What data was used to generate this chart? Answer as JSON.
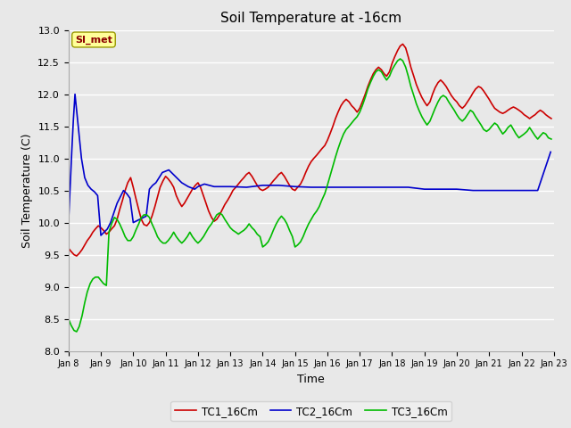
{
  "title": "Soil Temperature at -16cm",
  "xlabel": "Time",
  "ylabel": "Soil Temperature (C)",
  "ylim": [
    8.0,
    13.0
  ],
  "yticks": [
    8.0,
    8.5,
    9.0,
    9.5,
    10.0,
    10.5,
    11.0,
    11.5,
    12.0,
    12.5,
    13.0
  ],
  "annotation_text": "SI_met",
  "annotation_color": "#8B0000",
  "annotation_bg": "#FFFF99",
  "bg_color": "#E8E8E8",
  "plot_bg_color": "#E8E8E8",
  "grid_color": "#FFFFFF",
  "line_colors": {
    "TC1": "#CC0000",
    "TC2": "#0000CC",
    "TC3": "#00BB00"
  },
  "line_width": 1.2,
  "legend_labels": [
    "TC1_16Cm",
    "TC2_16Cm",
    "TC3_16Cm"
  ],
  "x_start_day": 8,
  "x_end_day": 23,
  "x_tick_days": [
    8,
    9,
    10,
    11,
    12,
    13,
    14,
    15,
    16,
    17,
    18,
    19,
    20,
    21,
    22,
    23
  ],
  "TC1_x": [
    8.0,
    8.08,
    8.17,
    8.25,
    8.33,
    8.42,
    8.5,
    8.58,
    8.67,
    8.75,
    8.83,
    8.92,
    9.0,
    9.08,
    9.17,
    9.25,
    9.33,
    9.42,
    9.5,
    9.58,
    9.67,
    9.75,
    9.83,
    9.92,
    10.0,
    10.08,
    10.17,
    10.25,
    10.33,
    10.42,
    10.5,
    10.58,
    10.67,
    10.75,
    10.83,
    10.92,
    11.0,
    11.08,
    11.17,
    11.25,
    11.33,
    11.42,
    11.5,
    11.58,
    11.67,
    11.75,
    11.83,
    11.92,
    12.0,
    12.08,
    12.17,
    12.25,
    12.33,
    12.42,
    12.5,
    12.58,
    12.67,
    12.75,
    12.83,
    12.92,
    13.0,
    13.08,
    13.17,
    13.25,
    13.33,
    13.42,
    13.5,
    13.58,
    13.67,
    13.75,
    13.83,
    13.92,
    14.0,
    14.08,
    14.17,
    14.25,
    14.33,
    14.42,
    14.5,
    14.58,
    14.67,
    14.75,
    14.83,
    14.92,
    15.0,
    15.08,
    15.17,
    15.25,
    15.33,
    15.42,
    15.5,
    15.58,
    15.67,
    15.75,
    15.83,
    15.92,
    16.0,
    16.08,
    16.17,
    16.25,
    16.33,
    16.42,
    16.5,
    16.58,
    16.67,
    16.75,
    16.83,
    16.92,
    17.0,
    17.08,
    17.17,
    17.25,
    17.33,
    17.42,
    17.5,
    17.58,
    17.67,
    17.75,
    17.83,
    17.92,
    18.0,
    18.08,
    18.17,
    18.25,
    18.33,
    18.42,
    18.5,
    18.58,
    18.67,
    18.75,
    18.83,
    18.92,
    19.0,
    19.08,
    19.17,
    19.25,
    19.33,
    19.42,
    19.5,
    19.58,
    19.67,
    19.75,
    19.83,
    19.92,
    20.0,
    20.08,
    20.17,
    20.25,
    20.33,
    20.42,
    20.5,
    20.58,
    20.67,
    20.75,
    20.83,
    20.92,
    21.0,
    21.08,
    21.17,
    21.25,
    21.33,
    21.42,
    21.5,
    21.58,
    21.67,
    21.75,
    21.83,
    21.92,
    22.0,
    22.08,
    22.17,
    22.25,
    22.33,
    22.42,
    22.5,
    22.58,
    22.67,
    22.75,
    22.83,
    22.92
  ],
  "TC1_y": [
    9.6,
    9.55,
    9.5,
    9.48,
    9.52,
    9.58,
    9.65,
    9.72,
    9.78,
    9.85,
    9.9,
    9.95,
    9.92,
    9.88,
    9.82,
    9.85,
    9.9,
    9.95,
    10.05,
    10.2,
    10.35,
    10.5,
    10.62,
    10.7,
    10.55,
    10.38,
    10.2,
    10.05,
    9.97,
    9.95,
    10.0,
    10.1,
    10.25,
    10.4,
    10.55,
    10.65,
    10.72,
    10.68,
    10.62,
    10.55,
    10.42,
    10.32,
    10.25,
    10.3,
    10.38,
    10.45,
    10.52,
    10.58,
    10.62,
    10.55,
    10.42,
    10.3,
    10.18,
    10.08,
    10.02,
    10.05,
    10.12,
    10.2,
    10.28,
    10.35,
    10.42,
    10.5,
    10.55,
    10.6,
    10.65,
    10.7,
    10.75,
    10.78,
    10.72,
    10.65,
    10.58,
    10.52,
    10.5,
    10.52,
    10.55,
    10.6,
    10.65,
    10.7,
    10.75,
    10.78,
    10.72,
    10.65,
    10.58,
    10.52,
    10.5,
    10.55,
    10.6,
    10.68,
    10.78,
    10.88,
    10.95,
    11.0,
    11.05,
    11.1,
    11.15,
    11.2,
    11.28,
    11.38,
    11.5,
    11.62,
    11.72,
    11.82,
    11.88,
    11.92,
    11.88,
    11.82,
    11.78,
    11.72,
    11.78,
    11.88,
    12.0,
    12.12,
    12.22,
    12.32,
    12.38,
    12.42,
    12.38,
    12.32,
    12.28,
    12.35,
    12.48,
    12.58,
    12.68,
    12.75,
    12.78,
    12.72,
    12.58,
    12.42,
    12.28,
    12.15,
    12.05,
    11.95,
    11.88,
    11.82,
    11.88,
    12.0,
    12.1,
    12.18,
    12.22,
    12.18,
    12.12,
    12.05,
    11.98,
    11.92,
    11.88,
    11.82,
    11.78,
    11.82,
    11.88,
    11.95,
    12.02,
    12.08,
    12.12,
    12.1,
    12.05,
    11.98,
    11.92,
    11.85,
    11.78,
    11.75,
    11.72,
    11.7,
    11.72,
    11.75,
    11.78,
    11.8,
    11.78,
    11.75,
    11.72,
    11.68,
    11.65,
    11.62,
    11.65,
    11.68,
    11.72,
    11.75,
    11.72,
    11.68,
    11.65,
    11.62
  ],
  "TC2_x": [
    8.0,
    8.05,
    8.1,
    8.15,
    8.2,
    8.3,
    8.4,
    8.5,
    8.6,
    8.7,
    8.8,
    8.9,
    9.0,
    9.1,
    9.2,
    9.3,
    9.4,
    9.5,
    9.6,
    9.7,
    9.8,
    9.9,
    10.0,
    10.2,
    10.4,
    10.5,
    10.6,
    10.7,
    10.9,
    11.1,
    11.3,
    11.5,
    11.7,
    11.9,
    12.0,
    12.2,
    12.5,
    12.7,
    13.0,
    13.5,
    14.0,
    14.5,
    15.0,
    15.5,
    16.0,
    16.5,
    17.0,
    17.5,
    18.0,
    18.5,
    19.0,
    19.5,
    20.0,
    20.5,
    21.0,
    21.1,
    21.15,
    21.2,
    21.5,
    21.8,
    22.0,
    22.5,
    22.9
  ],
  "TC2_y": [
    10.0,
    10.55,
    11.1,
    11.6,
    12.0,
    11.5,
    11.0,
    10.7,
    10.58,
    10.52,
    10.48,
    10.42,
    9.8,
    9.85,
    9.9,
    10.0,
    10.15,
    10.3,
    10.4,
    10.5,
    10.45,
    10.38,
    10.0,
    10.05,
    10.1,
    10.52,
    10.58,
    10.62,
    10.78,
    10.82,
    10.72,
    10.62,
    10.56,
    10.52,
    10.56,
    10.6,
    10.56,
    10.56,
    10.56,
    10.55,
    10.58,
    10.58,
    10.56,
    10.55,
    10.55,
    10.55,
    10.55,
    10.55,
    10.55,
    10.55,
    10.52,
    10.52,
    10.52,
    10.5,
    10.5,
    10.5,
    10.5,
    10.5,
    10.5,
    10.5,
    10.5,
    10.5,
    11.1
  ],
  "TC3_x": [
    8.0,
    8.08,
    8.17,
    8.25,
    8.33,
    8.42,
    8.5,
    8.58,
    8.67,
    8.75,
    8.83,
    8.92,
    9.0,
    9.08,
    9.17,
    9.25,
    9.33,
    9.42,
    9.5,
    9.58,
    9.67,
    9.75,
    9.83,
    9.92,
    10.0,
    10.08,
    10.17,
    10.25,
    10.33,
    10.42,
    10.5,
    10.58,
    10.67,
    10.75,
    10.83,
    10.92,
    11.0,
    11.08,
    11.17,
    11.25,
    11.33,
    11.42,
    11.5,
    11.58,
    11.67,
    11.75,
    11.83,
    11.92,
    12.0,
    12.08,
    12.17,
    12.25,
    12.33,
    12.42,
    12.5,
    12.58,
    12.67,
    12.75,
    12.83,
    12.92,
    13.0,
    13.08,
    13.17,
    13.25,
    13.33,
    13.42,
    13.5,
    13.58,
    13.67,
    13.75,
    13.83,
    13.92,
    14.0,
    14.08,
    14.17,
    14.25,
    14.33,
    14.42,
    14.5,
    14.58,
    14.67,
    14.75,
    14.83,
    14.92,
    15.0,
    15.08,
    15.17,
    15.25,
    15.33,
    15.42,
    15.5,
    15.58,
    15.67,
    15.75,
    15.83,
    15.92,
    16.0,
    16.08,
    16.17,
    16.25,
    16.33,
    16.42,
    16.5,
    16.58,
    16.67,
    16.75,
    16.83,
    16.92,
    17.0,
    17.08,
    17.17,
    17.25,
    17.33,
    17.42,
    17.5,
    17.58,
    17.67,
    17.75,
    17.83,
    17.92,
    18.0,
    18.08,
    18.17,
    18.25,
    18.33,
    18.42,
    18.5,
    18.58,
    18.67,
    18.75,
    18.83,
    18.92,
    19.0,
    19.08,
    19.17,
    19.25,
    19.33,
    19.42,
    19.5,
    19.58,
    19.67,
    19.75,
    19.83,
    19.92,
    20.0,
    20.08,
    20.17,
    20.25,
    20.33,
    20.42,
    20.5,
    20.58,
    20.67,
    20.75,
    20.83,
    20.92,
    21.0,
    21.08,
    21.17,
    21.25,
    21.33,
    21.42,
    21.5,
    21.58,
    21.67,
    21.75,
    21.83,
    21.92,
    22.0,
    22.08,
    22.17,
    22.25,
    22.33,
    22.42,
    22.5,
    22.58,
    22.67,
    22.75,
    22.83,
    22.92
  ],
  "TC3_y": [
    8.5,
    8.4,
    8.32,
    8.3,
    8.38,
    8.55,
    8.75,
    8.92,
    9.05,
    9.12,
    9.15,
    9.15,
    9.1,
    9.05,
    9.02,
    9.85,
    9.98,
    10.08,
    10.05,
    9.98,
    9.88,
    9.78,
    9.72,
    9.72,
    9.78,
    9.88,
    9.98,
    10.08,
    10.12,
    10.12,
    10.08,
    9.98,
    9.88,
    9.78,
    9.72,
    9.68,
    9.68,
    9.72,
    9.78,
    9.85,
    9.78,
    9.72,
    9.68,
    9.72,
    9.78,
    9.85,
    9.78,
    9.72,
    9.68,
    9.72,
    9.78,
    9.85,
    9.92,
    9.98,
    10.05,
    10.12,
    10.15,
    10.12,
    10.05,
    9.98,
    9.92,
    9.88,
    9.85,
    9.82,
    9.85,
    9.88,
    9.92,
    9.98,
    9.92,
    9.88,
    9.82,
    9.78,
    9.62,
    9.65,
    9.7,
    9.78,
    9.88,
    9.98,
    10.05,
    10.1,
    10.05,
    9.98,
    9.88,
    9.78,
    9.62,
    9.65,
    9.7,
    9.78,
    9.88,
    9.98,
    10.05,
    10.12,
    10.18,
    10.25,
    10.35,
    10.45,
    10.58,
    10.72,
    10.88,
    11.02,
    11.15,
    11.28,
    11.38,
    11.45,
    11.5,
    11.55,
    11.6,
    11.65,
    11.72,
    11.82,
    11.95,
    12.08,
    12.18,
    12.28,
    12.35,
    12.38,
    12.35,
    12.28,
    12.22,
    12.28,
    12.38,
    12.45,
    12.52,
    12.55,
    12.52,
    12.42,
    12.28,
    12.12,
    11.98,
    11.85,
    11.75,
    11.65,
    11.58,
    11.52,
    11.58,
    11.68,
    11.78,
    11.88,
    11.95,
    11.98,
    11.95,
    11.88,
    11.82,
    11.75,
    11.68,
    11.62,
    11.58,
    11.62,
    11.68,
    11.75,
    11.72,
    11.65,
    11.58,
    11.52,
    11.45,
    11.42,
    11.45,
    11.5,
    11.55,
    11.52,
    11.45,
    11.38,
    11.42,
    11.48,
    11.52,
    11.45,
    11.38,
    11.32,
    11.35,
    11.38,
    11.42,
    11.48,
    11.42,
    11.35,
    11.3,
    11.35,
    11.4,
    11.38,
    11.32,
    11.3
  ]
}
